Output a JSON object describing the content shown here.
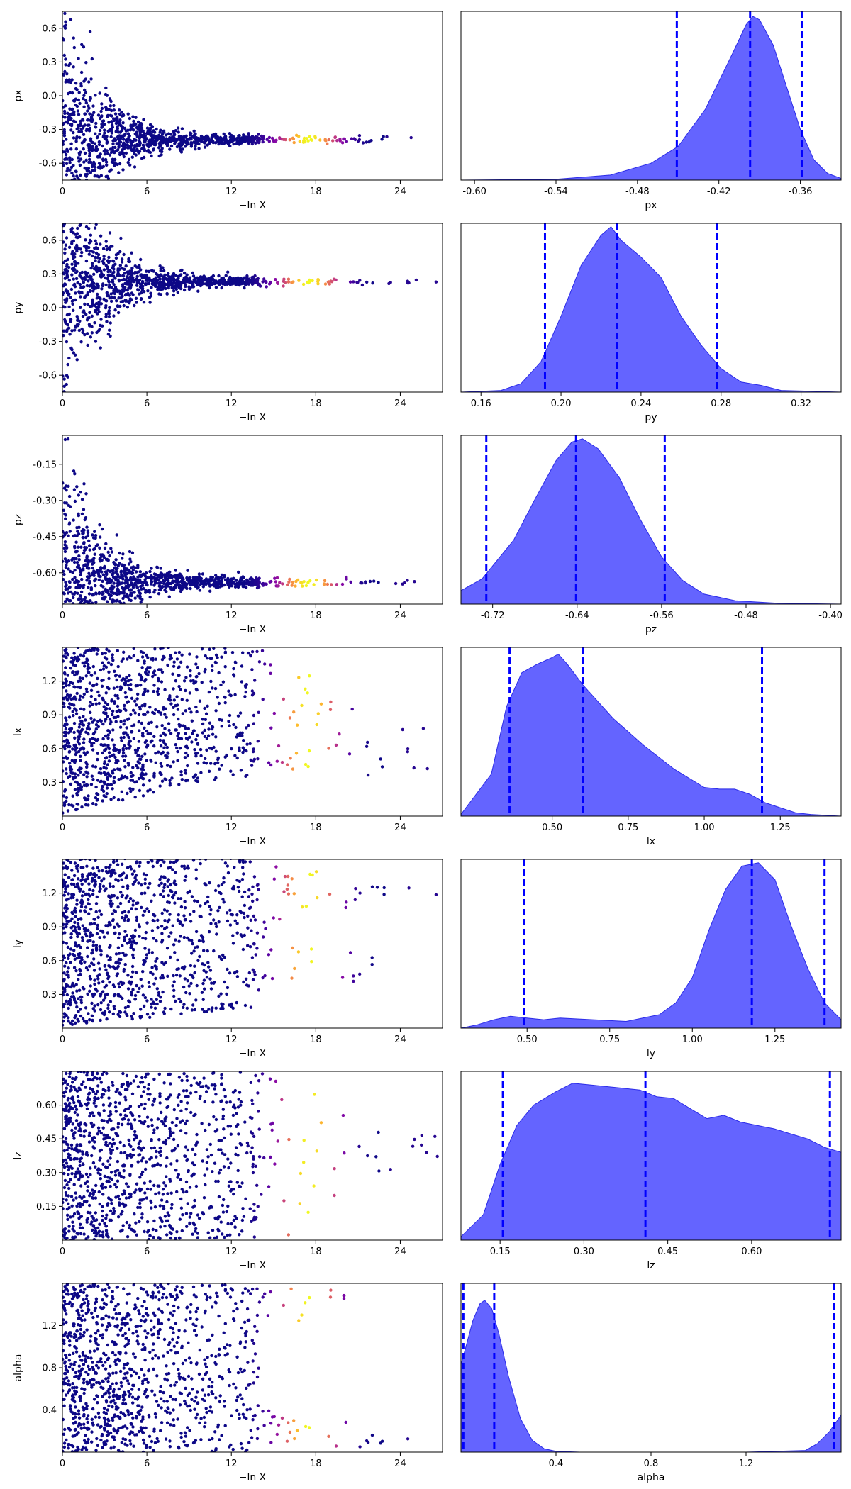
{
  "chart_data": [
    {
      "type": "trace-panel",
      "parameter": "px",
      "trace": {
        "type": "scatter",
        "xlabel": "−ln X",
        "ylabel": "px",
        "xlim": [
          0,
          27
        ],
        "ylim": [
          -0.75,
          0.75
        ],
        "xticks": [
          "0",
          "6",
          "12",
          "18",
          "24"
        ],
        "yticks": [
          "-0.6",
          "-0.3",
          "0.0",
          "0.3",
          "0.6"
        ],
        "ytick_values": [
          -0.6,
          -0.3,
          0.0,
          0.3,
          0.6
        ],
        "shape": "converge",
        "center": -0.39,
        "upper_center": null,
        "colormap": "plasma",
        "bright_range": [
          14,
          21
        ]
      },
      "posterior": {
        "type": "area",
        "xlabel": "px",
        "xlim": [
          -0.61,
          -0.33
        ],
        "xticks": [
          "-0.60",
          "-0.54",
          "-0.48",
          "-0.42",
          "-0.36"
        ],
        "xtick_values": [
          -0.6,
          -0.54,
          -0.48,
          -0.42,
          -0.36
        ],
        "x": [
          -0.61,
          -0.54,
          -0.5,
          -0.47,
          -0.45,
          -0.43,
          -0.41,
          -0.4,
          -0.395,
          -0.39,
          -0.38,
          -0.37,
          -0.36,
          -0.35,
          -0.34,
          -0.33
        ],
        "density": [
          0,
          0.005,
          0.03,
          0.1,
          0.2,
          0.42,
          0.75,
          0.92,
          0.97,
          0.95,
          0.8,
          0.55,
          0.3,
          0.12,
          0.04,
          0.01
        ],
        "quantile_lines": [
          -0.451,
          -0.397,
          -0.359
        ]
      }
    },
    {
      "type": "trace-panel",
      "parameter": "py",
      "trace": {
        "type": "scatter",
        "xlabel": "−ln X",
        "ylabel": "py",
        "xlim": [
          0,
          27
        ],
        "ylim": [
          -0.75,
          0.75
        ],
        "xticks": [
          "0",
          "6",
          "12",
          "18",
          "24"
        ],
        "yticks": [
          "-0.6",
          "-0.3",
          "0.0",
          "0.3",
          "0.6"
        ],
        "ytick_values": [
          -0.6,
          -0.3,
          0.0,
          0.3,
          0.6
        ],
        "shape": "converge",
        "center": 0.23,
        "upper_center": null,
        "colormap": "plasma",
        "bright_range": [
          14,
          21
        ]
      },
      "posterior": {
        "type": "area",
        "xlabel": "py",
        "xlim": [
          0.15,
          0.34
        ],
        "xticks": [
          "0.16",
          "0.20",
          "0.24",
          "0.28",
          "0.32"
        ],
        "xtick_values": [
          0.16,
          0.2,
          0.24,
          0.28,
          0.32
        ],
        "x": [
          0.15,
          0.17,
          0.18,
          0.19,
          0.2,
          0.21,
          0.22,
          0.225,
          0.23,
          0.24,
          0.25,
          0.26,
          0.27,
          0.28,
          0.29,
          0.3,
          0.31,
          0.34
        ],
        "density": [
          0,
          0.01,
          0.05,
          0.18,
          0.45,
          0.75,
          0.93,
          0.98,
          0.9,
          0.8,
          0.68,
          0.45,
          0.28,
          0.14,
          0.06,
          0.04,
          0.01,
          0
        ],
        "quantile_lines": [
          0.192,
          0.228,
          0.278
        ]
      }
    },
    {
      "type": "trace-panel",
      "parameter": "pz",
      "trace": {
        "type": "scatter",
        "xlabel": "−ln X",
        "ylabel": "pz",
        "xlim": [
          0,
          27
        ],
        "ylim": [
          -0.73,
          -0.03
        ],
        "xticks": [
          "0",
          "6",
          "12",
          "18",
          "24"
        ],
        "yticks": [
          "-0.15",
          "-0.30",
          "-0.45",
          "-0.60"
        ],
        "ytick_values": [
          -0.15,
          -0.3,
          -0.45,
          -0.6
        ],
        "shape": "converge",
        "center": -0.64,
        "upper_center": null,
        "colormap": "plasma",
        "bright_range": [
          14,
          21
        ]
      },
      "posterior": {
        "type": "area",
        "xlabel": "pz",
        "xlim": [
          -0.75,
          -0.39
        ],
        "xticks": [
          "-0.72",
          "-0.64",
          "-0.56",
          "-0.48",
          "-0.40"
        ],
        "xtick_values": [
          -0.72,
          -0.64,
          -0.56,
          -0.48,
          -0.4
        ],
        "x": [
          -0.75,
          -0.73,
          -0.7,
          -0.68,
          -0.66,
          -0.645,
          -0.635,
          -0.62,
          -0.6,
          -0.58,
          -0.56,
          -0.54,
          -0.52,
          -0.49,
          -0.45,
          -0.39
        ],
        "density": [
          0.08,
          0.15,
          0.38,
          0.62,
          0.85,
          0.96,
          0.98,
          0.92,
          0.75,
          0.5,
          0.28,
          0.14,
          0.06,
          0.02,
          0.005,
          0
        ],
        "quantile_lines": [
          -0.726,
          -0.641,
          -0.557
        ]
      }
    },
    {
      "type": "trace-panel",
      "parameter": "lx",
      "trace": {
        "type": "scatter",
        "xlabel": "−ln X",
        "ylabel": "lx",
        "xlim": [
          0,
          27
        ],
        "ylim": [
          0,
          1.5
        ],
        "xticks": [
          "0",
          "6",
          "12",
          "18",
          "24"
        ],
        "yticks": [
          "0.3",
          "0.6",
          "0.9",
          "1.2"
        ],
        "ytick_values": [
          0.3,
          0.6,
          0.9,
          1.2
        ],
        "shape": "lx",
        "center": 0.5,
        "upper_center": null,
        "colormap": "plasma",
        "bright_range": [
          14,
          21
        ]
      },
      "posterior": {
        "type": "area",
        "xlabel": "lx",
        "xlim": [
          0.2,
          1.45
        ],
        "xticks": [
          "0.50",
          "0.75",
          "1.00",
          "1.25"
        ],
        "xtick_values": [
          0.5,
          0.75,
          1.0,
          1.25
        ],
        "x": [
          0.2,
          0.3,
          0.35,
          0.4,
          0.45,
          0.5,
          0.52,
          0.55,
          0.6,
          0.7,
          0.8,
          0.9,
          1.0,
          1.05,
          1.1,
          1.15,
          1.2,
          1.25,
          1.3,
          1.35,
          1.45
        ],
        "density": [
          0.01,
          0.25,
          0.65,
          0.85,
          0.9,
          0.94,
          0.96,
          0.9,
          0.78,
          0.58,
          0.42,
          0.28,
          0.17,
          0.16,
          0.16,
          0.13,
          0.08,
          0.05,
          0.02,
          0.01,
          0
        ],
        "quantile_lines": [
          0.36,
          0.6,
          1.19
        ]
      }
    },
    {
      "type": "trace-panel",
      "parameter": "ly",
      "trace": {
        "type": "scatter",
        "xlabel": "−ln X",
        "ylabel": "ly",
        "xlim": [
          0,
          27
        ],
        "ylim": [
          0,
          1.5
        ],
        "xticks": [
          "0",
          "6",
          "12",
          "18",
          "24"
        ],
        "yticks": [
          "0.3",
          "0.6",
          "0.9",
          "1.2"
        ],
        "ytick_values": [
          0.3,
          0.6,
          0.9,
          1.2
        ],
        "shape": "split",
        "center": 0.55,
        "upper_center": 1.2,
        "colormap": "plasma",
        "bright_range": [
          14,
          21
        ]
      },
      "posterior": {
        "type": "area",
        "xlabel": "ly",
        "xlim": [
          0.3,
          1.45
        ],
        "xticks": [
          "0.50",
          "0.75",
          "1.00",
          "1.25"
        ],
        "xtick_values": [
          0.5,
          0.75,
          1.0,
          1.25
        ],
        "x": [
          0.3,
          0.35,
          0.4,
          0.45,
          0.5,
          0.55,
          0.6,
          0.7,
          0.8,
          0.9,
          0.95,
          1.0,
          1.05,
          1.1,
          1.15,
          1.2,
          1.25,
          1.3,
          1.35,
          1.4,
          1.45
        ],
        "density": [
          0,
          0.02,
          0.05,
          0.07,
          0.06,
          0.05,
          0.06,
          0.05,
          0.04,
          0.08,
          0.15,
          0.3,
          0.58,
          0.82,
          0.96,
          0.98,
          0.88,
          0.6,
          0.35,
          0.15,
          0.05
        ],
        "quantile_lines": [
          0.49,
          1.18,
          1.4
        ]
      }
    },
    {
      "type": "trace-panel",
      "parameter": "lz",
      "trace": {
        "type": "scatter",
        "xlabel": "−ln X",
        "ylabel": "lz",
        "xlim": [
          0,
          27
        ],
        "ylim": [
          0,
          0.75
        ],
        "xticks": [
          "0",
          "6",
          "12",
          "18",
          "24"
        ],
        "yticks": [
          "0.15",
          "0.30",
          "0.45",
          "0.60"
        ],
        "ytick_values": [
          0.15,
          0.3,
          0.45,
          0.6
        ],
        "shape": "uniform",
        "center": 0.4,
        "upper_center": null,
        "colormap": "plasma",
        "bright_range": [
          14,
          21
        ]
      },
      "posterior": {
        "type": "area",
        "xlabel": "lz",
        "xlim": [
          0.08,
          0.76
        ],
        "xticks": [
          "0.15",
          "0.30",
          "0.45",
          "0.60"
        ],
        "xtick_values": [
          0.15,
          0.3,
          0.45,
          0.6
        ],
        "x": [
          0.08,
          0.12,
          0.15,
          0.18,
          0.21,
          0.25,
          0.28,
          0.31,
          0.34,
          0.37,
          0.4,
          0.43,
          0.46,
          0.49,
          0.52,
          0.55,
          0.58,
          0.61,
          0.64,
          0.67,
          0.7,
          0.73,
          0.76
        ],
        "density": [
          0.02,
          0.15,
          0.45,
          0.68,
          0.8,
          0.88,
          0.93,
          0.92,
          0.91,
          0.9,
          0.89,
          0.85,
          0.84,
          0.78,
          0.72,
          0.74,
          0.7,
          0.68,
          0.66,
          0.63,
          0.6,
          0.55,
          0.52
        ],
        "quantile_lines": [
          0.155,
          0.41,
          0.74
        ]
      }
    },
    {
      "type": "trace-panel",
      "parameter": "alpha",
      "trace": {
        "type": "scatter",
        "xlabel": "−ln X",
        "ylabel": "alpha",
        "xlim": [
          0,
          27
        ],
        "ylim": [
          0,
          1.6
        ],
        "xticks": [
          "0",
          "6",
          "12",
          "18",
          "24"
        ],
        "yticks": [
          "0.4",
          "0.8",
          "1.2"
        ],
        "ytick_values": [
          0.4,
          0.8,
          1.2
        ],
        "shape": "alpha",
        "center": 0.05,
        "upper_center": 1.55,
        "colormap": "plasma",
        "bright_range": [
          14,
          21
        ]
      },
      "posterior": {
        "type": "area",
        "xlabel": "alpha",
        "xlim": [
          0,
          1.6
        ],
        "xticks": [
          "0.4",
          "0.8",
          "1.2"
        ],
        "xtick_values": [
          0.4,
          0.8,
          1.2
        ],
        "x": [
          0,
          0.02,
          0.05,
          0.08,
          0.1,
          0.13,
          0.16,
          0.2,
          0.25,
          0.3,
          0.35,
          0.4,
          0.5,
          0.8,
          1.2,
          1.45,
          1.5,
          1.55,
          1.6
        ],
        "density": [
          0.52,
          0.62,
          0.78,
          0.88,
          0.9,
          0.85,
          0.7,
          0.45,
          0.2,
          0.07,
          0.02,
          0.005,
          0,
          0,
          0,
          0.01,
          0.05,
          0.12,
          0.22
        ],
        "quantile_lines": [
          0.01,
          0.14,
          1.57
        ]
      }
    }
  ]
}
